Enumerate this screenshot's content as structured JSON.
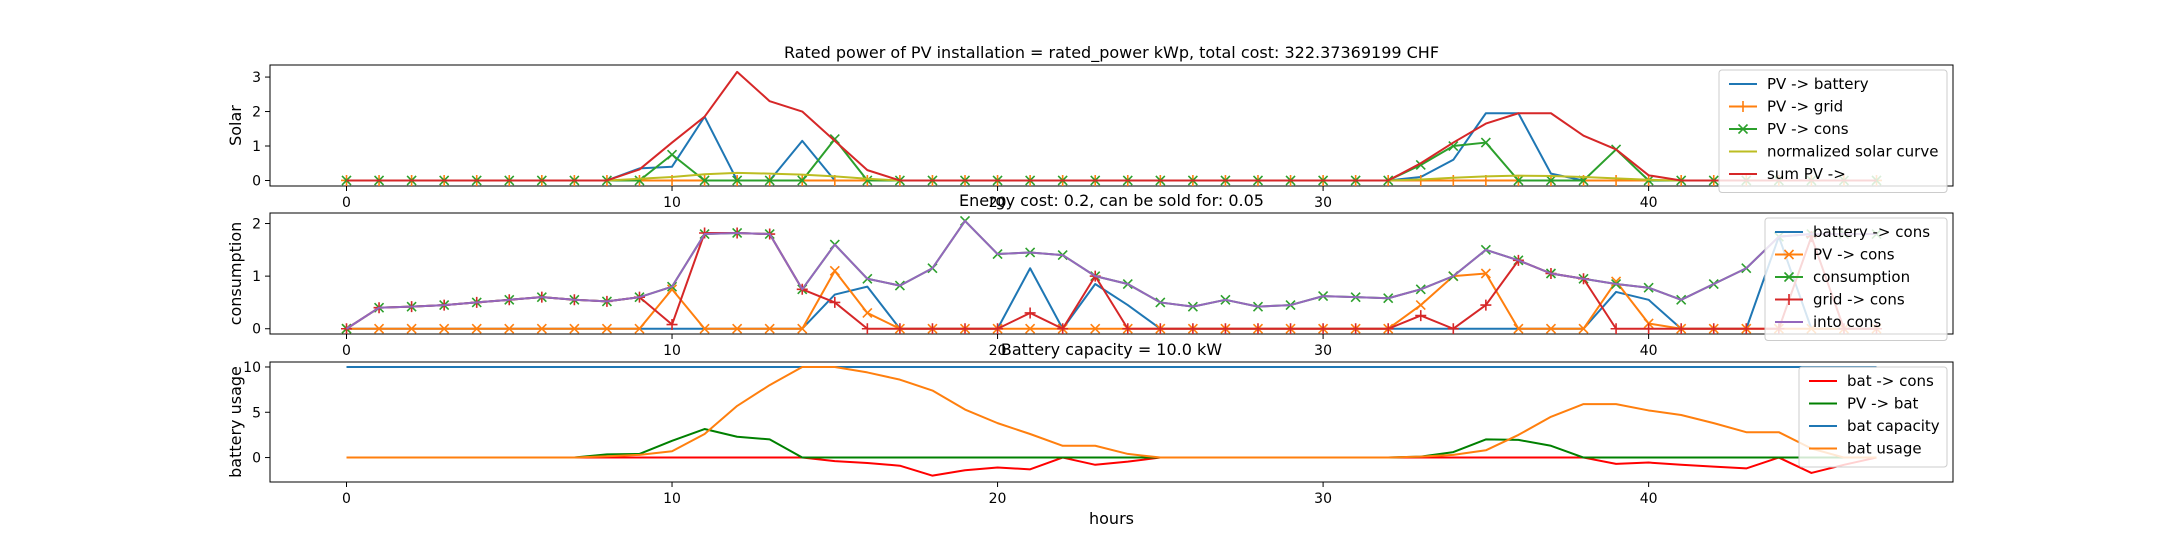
{
  "chart_data": [
    {
      "type": "line",
      "title": "Rated power of PV installation = rated_power kWp, total cost: 322.37369199 CHF",
      "xlabel": "",
      "ylabel": "Solar",
      "xlim": [
        -2.35,
        49.35
      ],
      "ylim": [
        -0.16,
        3.35
      ],
      "xticks": [
        0,
        10,
        20,
        30,
        40
      ],
      "yticks": [
        0,
        1,
        2,
        3
      ],
      "legend_position": "top-right",
      "series": [
        {
          "name": "PV -> battery",
          "color": "#1f77b4",
          "marker": "none",
          "values": [
            0,
            0,
            0,
            0,
            0,
            0,
            0,
            0,
            0,
            0.35,
            0.4,
            1.85,
            0,
            0,
            1.15,
            0,
            0,
            0,
            0,
            0,
            0,
            0,
            0,
            0,
            0,
            0,
            0,
            0,
            0,
            0,
            0,
            0,
            0,
            0.1,
            0.6,
            1.95,
            1.95,
            0.2,
            0,
            0,
            0,
            0,
            0,
            0,
            0,
            0,
            0,
            0
          ]
        },
        {
          "name": "PV -> grid",
          "color": "#ff7f0e",
          "marker": "plus",
          "values": [
            0,
            0,
            0,
            0,
            0,
            0,
            0,
            0,
            0,
            0,
            0,
            0,
            0,
            0,
            0,
            0,
            0,
            0,
            0,
            0,
            0,
            0,
            0,
            0,
            0,
            0,
            0,
            0,
            0,
            0,
            0,
            0,
            0,
            0,
            0,
            0,
            0,
            0,
            0,
            0,
            0,
            0,
            0,
            0,
            0,
            0,
            0,
            0
          ]
        },
        {
          "name": "PV -> cons",
          "color": "#2ca02c",
          "marker": "x",
          "values": [
            0,
            0,
            0,
            0,
            0,
            0,
            0,
            0,
            0,
            0,
            0.75,
            0,
            0,
            0,
            0,
            1.2,
            0,
            0,
            0,
            0,
            0,
            0,
            0,
            0,
            0,
            0,
            0,
            0,
            0,
            0,
            0,
            0,
            0,
            0.45,
            1.0,
            1.1,
            0,
            0,
            0,
            0.9,
            0,
            0,
            0,
            0,
            0,
            0,
            0,
            0
          ]
        },
        {
          "name": "normalized solar curve",
          "color": "#bcbd22",
          "marker": "none",
          "values": [
            0,
            0,
            0,
            0,
            0,
            0,
            0,
            0,
            0,
            0.05,
            0.1,
            0.18,
            0.22,
            0.2,
            0.17,
            0.12,
            0.05,
            0,
            0,
            0,
            0,
            0,
            0,
            0,
            0,
            0,
            0,
            0,
            0,
            0,
            0,
            0,
            0,
            0.03,
            0.08,
            0.12,
            0.14,
            0.13,
            0.1,
            0.06,
            0.02,
            0,
            0,
            0,
            0,
            0,
            0,
            0
          ]
        },
        {
          "name": "sum PV ->",
          "color": "#d62728",
          "marker": "none",
          "values": [
            0,
            0,
            0,
            0,
            0,
            0,
            0,
            0,
            0,
            0.32,
            1.1,
            1.85,
            3.15,
            2.3,
            2.0,
            1.15,
            0.3,
            0,
            0,
            0,
            0,
            0,
            0,
            0,
            0,
            0,
            0,
            0,
            0,
            0,
            0,
            0,
            0,
            0.5,
            1.1,
            1.65,
            1.95,
            1.95,
            1.3,
            0.9,
            0.15,
            0,
            0,
            0,
            0,
            0,
            0,
            0
          ]
        }
      ]
    },
    {
      "type": "line",
      "title": "Energy cost: 0.2, can be sold for: 0.05",
      "xlabel": "",
      "ylabel": "consumption",
      "xlim": [
        -2.35,
        49.35
      ],
      "ylim": [
        -0.1,
        2.2
      ],
      "xticks": [
        0,
        10,
        20,
        30,
        40
      ],
      "yticks": [
        0,
        1,
        2
      ],
      "legend_position": "top-right",
      "series": [
        {
          "name": "battery -> cons",
          "color": "#1f77b4",
          "marker": "none",
          "values": [
            0,
            0,
            0,
            0,
            0,
            0,
            0,
            0,
            0,
            0,
            0,
            0,
            0,
            0,
            0,
            0.65,
            0.8,
            0,
            0,
            0,
            0,
            1.15,
            0,
            0.85,
            0.45,
            0,
            0,
            0,
            0,
            0,
            0,
            0,
            0,
            0,
            0,
            0,
            0,
            0,
            0,
            0.7,
            0.55,
            0,
            0,
            0,
            1.75,
            0,
            0,
            0
          ]
        },
        {
          "name": "PV -> cons",
          "color": "#ff7f0e",
          "marker": "x",
          "values": [
            0,
            0,
            0,
            0,
            0,
            0,
            0,
            0,
            0,
            0,
            0.75,
            0,
            0,
            0,
            0,
            1.1,
            0.3,
            0,
            0,
            0,
            0,
            0,
            0,
            0,
            0,
            0,
            0,
            0,
            0,
            0,
            0,
            0,
            0,
            0.45,
            1.0,
            1.05,
            0,
            0,
            0,
            0.9,
            0.1,
            0,
            0,
            0,
            0,
            0,
            0,
            0
          ]
        },
        {
          "name": "consumption",
          "color": "#2ca02c",
          "marker": "x",
          "values": [
            0,
            0.4,
            0.42,
            0.45,
            0.5,
            0.55,
            0.6,
            0.55,
            0.52,
            0.6,
            0.8,
            1.8,
            1.82,
            1.8,
            0.75,
            1.6,
            0.95,
            0.82,
            1.15,
            2.05,
            1.42,
            1.45,
            1.4,
            1.0,
            0.85,
            0.5,
            0.42,
            0.55,
            0.42,
            0.45,
            0.62,
            0.6,
            0.58,
            0.75,
            1.0,
            1.5,
            1.3,
            1.05,
            0.95,
            0.85,
            0.78,
            0.55,
            0.85,
            1.15,
            1.75,
            1.8,
            1.8,
            1.8
          ]
        },
        {
          "name": "grid -> cons",
          "color": "#d62728",
          "marker": "plus",
          "values": [
            0,
            0.4,
            0.42,
            0.45,
            0.5,
            0.55,
            0.6,
            0.55,
            0.52,
            0.6,
            0.08,
            1.82,
            1.82,
            1.8,
            0.75,
            0.5,
            0,
            0,
            0,
            0,
            0,
            0.3,
            0,
            1.0,
            0,
            0,
            0,
            0,
            0,
            0,
            0,
            0,
            0,
            0.25,
            0,
            0.45,
            1.3,
            1.05,
            0.95,
            0,
            0,
            0,
            0,
            0,
            0,
            1.75,
            0,
            0
          ]
        },
        {
          "name": "into cons",
          "color": "#9467bd",
          "marker": "none",
          "values": [
            0,
            0.4,
            0.42,
            0.45,
            0.5,
            0.55,
            0.6,
            0.55,
            0.52,
            0.6,
            0.8,
            1.8,
            1.82,
            1.8,
            0.75,
            1.6,
            0.95,
            0.82,
            1.15,
            2.05,
            1.42,
            1.45,
            1.4,
            1.0,
            0.85,
            0.5,
            0.42,
            0.55,
            0.42,
            0.45,
            0.62,
            0.6,
            0.58,
            0.75,
            1.0,
            1.5,
            1.3,
            1.05,
            0.95,
            0.85,
            0.78,
            0.55,
            0.85,
            1.15,
            1.75,
            1.8,
            1.8,
            1.8
          ]
        }
      ]
    },
    {
      "type": "line",
      "title": "Battery capacity = 10.0 kW",
      "xlabel": "hours",
      "ylabel": "battery usage",
      "xlim": [
        -2.35,
        49.35
      ],
      "ylim": [
        -2.7,
        10.55
      ],
      "xticks": [
        0,
        10,
        20,
        30,
        40
      ],
      "yticks": [
        0,
        5,
        10
      ],
      "legend_position": "top-right",
      "series": [
        {
          "name": "bat -> cons",
          "color": "#ff0000",
          "marker": "none",
          "values": [
            0,
            0,
            0,
            0,
            0,
            0,
            0,
            0,
            0,
            0,
            0,
            0,
            0,
            0,
            0,
            -0.4,
            -0.6,
            -0.9,
            -2.0,
            -1.4,
            -1.1,
            -1.3,
            0,
            -0.8,
            -0.45,
            0,
            0,
            0,
            0,
            0,
            0,
            0,
            0,
            0,
            0,
            0,
            0,
            0,
            0,
            -0.7,
            -0.55,
            -0.8,
            -1.0,
            -1.2,
            0,
            -1.7,
            -0.8,
            0
          ]
        },
        {
          "name": "PV -> bat",
          "color": "#008000",
          "marker": "none",
          "values": [
            0,
            0,
            0,
            0,
            0,
            0,
            0,
            0,
            0.35,
            0.4,
            1.85,
            3.15,
            2.3,
            2.0,
            0,
            0,
            0,
            0,
            0,
            0,
            0,
            0,
            0,
            0,
            0,
            0,
            0,
            0,
            0,
            0,
            0,
            0,
            0,
            0.1,
            0.6,
            2.0,
            1.95,
            1.3,
            0,
            0,
            0,
            0,
            0,
            0,
            0,
            0,
            0,
            0
          ]
        },
        {
          "name": "bat capacity",
          "color": "#1f77b4",
          "marker": "none",
          "values": [
            10,
            10,
            10,
            10,
            10,
            10,
            10,
            10,
            10,
            10,
            10,
            10,
            10,
            10,
            10,
            10,
            10,
            10,
            10,
            10,
            10,
            10,
            10,
            10,
            10,
            10,
            10,
            10,
            10,
            10,
            10,
            10,
            10,
            10,
            10,
            10,
            10,
            10,
            10,
            10,
            10,
            10,
            10,
            10,
            10,
            10,
            10,
            10
          ]
        },
        {
          "name": "bat usage",
          "color": "#ff7f0e",
          "marker": "none",
          "values": [
            0,
            0,
            0,
            0,
            0,
            0,
            0,
            0,
            0.15,
            0.3,
            0.7,
            2.6,
            5.7,
            8.0,
            10.0,
            10.0,
            9.4,
            8.6,
            7.4,
            5.3,
            3.8,
            2.6,
            1.3,
            1.3,
            0.4,
            0,
            0,
            0,
            0,
            0,
            0,
            0,
            0,
            0.1,
            0.3,
            0.8,
            2.5,
            4.5,
            5.9,
            5.9,
            5.2,
            4.7,
            3.8,
            2.8,
            2.8,
            1.0,
            0,
            0
          ]
        }
      ]
    }
  ]
}
